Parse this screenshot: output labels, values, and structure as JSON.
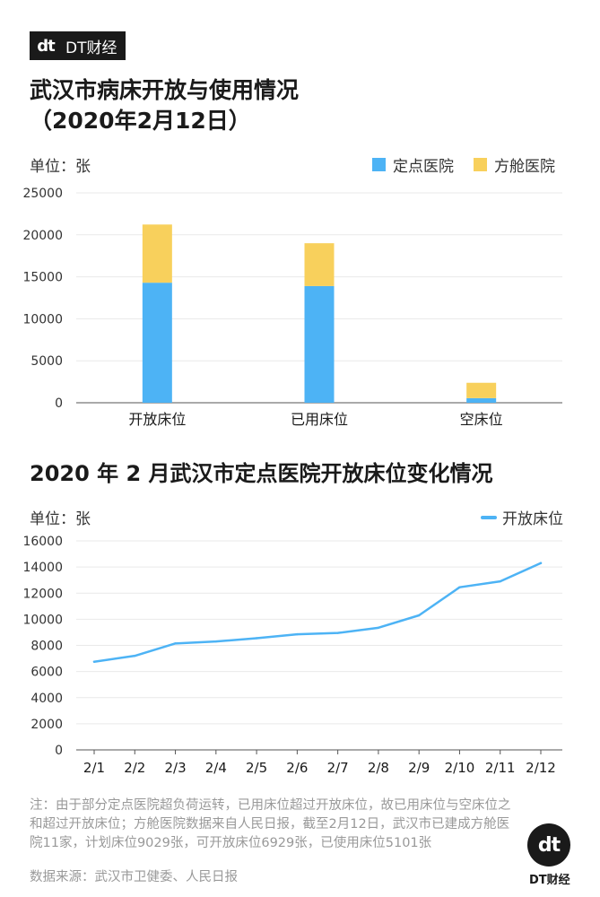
{
  "brand": {
    "logo_text": "dt",
    "name": "DT财经"
  },
  "chart1": {
    "title_line1": "武汉市病床开放与使用情况",
    "title_line2": "（2020年2月12日）",
    "unit": "单位：张",
    "legend": [
      "定点医院",
      "方舱医院"
    ],
    "colors": {
      "designated": "#4db3f5",
      "fangcang": "#f8d05c"
    }
  },
  "chart2": {
    "title": "2020 年 2 月武汉市定点医院开放床位变化情况",
    "unit": "单位：张",
    "legend": "开放床位",
    "color": "#4db3f5"
  },
  "chart_data": [
    {
      "type": "bar",
      "stacked": true,
      "title": "武汉市病床开放与使用情况（2020年2月12日）",
      "ylabel": "单位：张",
      "ylim": [
        0,
        25000
      ],
      "yticks": [
        0,
        5000,
        10000,
        15000,
        20000,
        25000
      ],
      "categories": [
        "开放床位",
        "已用床位",
        "空床位"
      ],
      "series": [
        {
          "name": "定点医院",
          "values": [
            14300,
            13900,
            550
          ]
        },
        {
          "name": "方舱医院",
          "values": [
            6929,
            5101,
            1828
          ]
        }
      ]
    },
    {
      "type": "line",
      "title": "2020 年 2 月武汉市定点医院开放床位变化情况",
      "ylabel": "单位：张",
      "ylim": [
        0,
        16000
      ],
      "yticks": [
        0,
        2000,
        4000,
        6000,
        8000,
        10000,
        12000,
        14000,
        16000
      ],
      "x": [
        "2/1",
        "2/2",
        "2/3",
        "2/4",
        "2/5",
        "2/6",
        "2/7",
        "2/8",
        "2/9",
        "2/10",
        "2/11",
        "2/12"
      ],
      "series": [
        {
          "name": "开放床位",
          "values": [
            6750,
            7200,
            8150,
            8300,
            8550,
            8850,
            8950,
            9350,
            10300,
            12450,
            12900,
            14300
          ]
        }
      ]
    }
  ],
  "note": "注：由于部分定点医院超负荷运转，已用床位超过开放床位，故已用床位与空床位之和超过开放床位；方舱医院数据来自人民日报，截至2月12日，武汉市已建成方舱医院11家，计划床位9029张，可开放床位6929张，已使用床位5101张",
  "source": "数据来源：武汉市卫健委、人民日报",
  "footer_logo": {
    "logo_text": "dt",
    "name": "DT财经"
  }
}
